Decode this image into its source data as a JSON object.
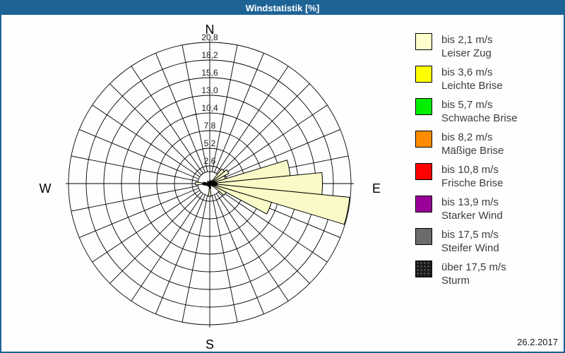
{
  "window": {
    "title": "Windstatistik [%]",
    "date": "26.2.2017",
    "accent_color": "#1E6396",
    "background_color": "#FDFEFD"
  },
  "compass": {
    "north": "N",
    "east": "E",
    "south": "S",
    "west": "W"
  },
  "chart_data": {
    "type": "wind_rose",
    "unit": "%",
    "sector_count": 32,
    "sector_width_deg": 11.25,
    "axis_max": 20.8,
    "ring_step": 2.6,
    "ring_labels": [
      "2,6",
      "5,2",
      "7,8",
      "10,4",
      "13,0",
      "15,6",
      "18,2",
      "20,8"
    ],
    "grid_color": "#000000",
    "petal_color": "#FAFAC8",
    "petal_stroke": "#000000",
    "petal_speed_class": "bis 2,1 m/s",
    "petals": [
      {
        "dir_deg": 45.0,
        "value_pct": 2.8
      },
      {
        "dir_deg": 56.25,
        "value_pct": 3.2
      },
      {
        "dir_deg": 67.5,
        "value_pct": 2.4
      },
      {
        "dir_deg": 78.75,
        "value_pct": 11.9
      },
      {
        "dir_deg": 90.0,
        "value_pct": 16.6
      },
      {
        "dir_deg": 101.25,
        "value_pct": 20.7
      },
      {
        "dir_deg": 112.5,
        "value_pct": 9.5
      },
      {
        "dir_deg": 123.75,
        "value_pct": 2.7
      },
      {
        "dir_deg": 180.0,
        "value_pct": 1.9
      },
      {
        "dir_deg": 270.0,
        "value_pct": 2.1
      }
    ],
    "center_cluster": {
      "color": "#000000",
      "spikes": [
        {
          "dir_deg": 67.5,
          "value_pct": 0.8
        },
        {
          "dir_deg": 78.75,
          "value_pct": 1.0
        },
        {
          "dir_deg": 90.0,
          "value_pct": 1.1
        },
        {
          "dir_deg": 101.25,
          "value_pct": 1.1
        },
        {
          "dir_deg": 112.5,
          "value_pct": 0.9
        },
        {
          "dir_deg": 135.0,
          "value_pct": 0.6
        },
        {
          "dir_deg": 170.0,
          "value_pct": 0.7
        },
        {
          "dir_deg": 180.0,
          "value_pct": 0.8
        },
        {
          "dir_deg": 202.5,
          "value_pct": 0.5
        },
        {
          "dir_deg": 225.0,
          "value_pct": 0.5
        },
        {
          "dir_deg": 247.5,
          "value_pct": 0.7
        },
        {
          "dir_deg": 261.0,
          "value_pct": 1.0
        },
        {
          "dir_deg": 270.0,
          "value_pct": 1.1
        },
        {
          "dir_deg": 279.0,
          "value_pct": 0.9
        },
        {
          "dir_deg": 315.0,
          "value_pct": 0.5
        },
        {
          "dir_deg": 20.0,
          "value_pct": 0.5
        }
      ]
    }
  },
  "legend": {
    "items": [
      {
        "speed": "bis 2,1 m/s",
        "name": "Leiser Zug",
        "color": "#FFFFCC"
      },
      {
        "speed": "bis 3,6 m/s",
        "name": "Leichte Brise",
        "color": "#FFFF00"
      },
      {
        "speed": "bis 5,7 m/s",
        "name": "Schwache Brise",
        "color": "#00EE00"
      },
      {
        "speed": "bis 8,2 m/s",
        "name": "Mäßige Brise",
        "color": "#FF8C00"
      },
      {
        "speed": "bis 10,8 m/s",
        "name": "Frische Brise",
        "color": "#FF0000"
      },
      {
        "speed": "bis 13,9 m/s",
        "name": "Starker Wind",
        "color": "#990099"
      },
      {
        "speed": "bis 17,5 m/s",
        "name": "Steifer Wind",
        "color": "#6B6B6B"
      },
      {
        "speed": "über 17,5 m/s",
        "name": "Sturm",
        "color": "#1A1A1A",
        "texture": "dots"
      }
    ]
  }
}
